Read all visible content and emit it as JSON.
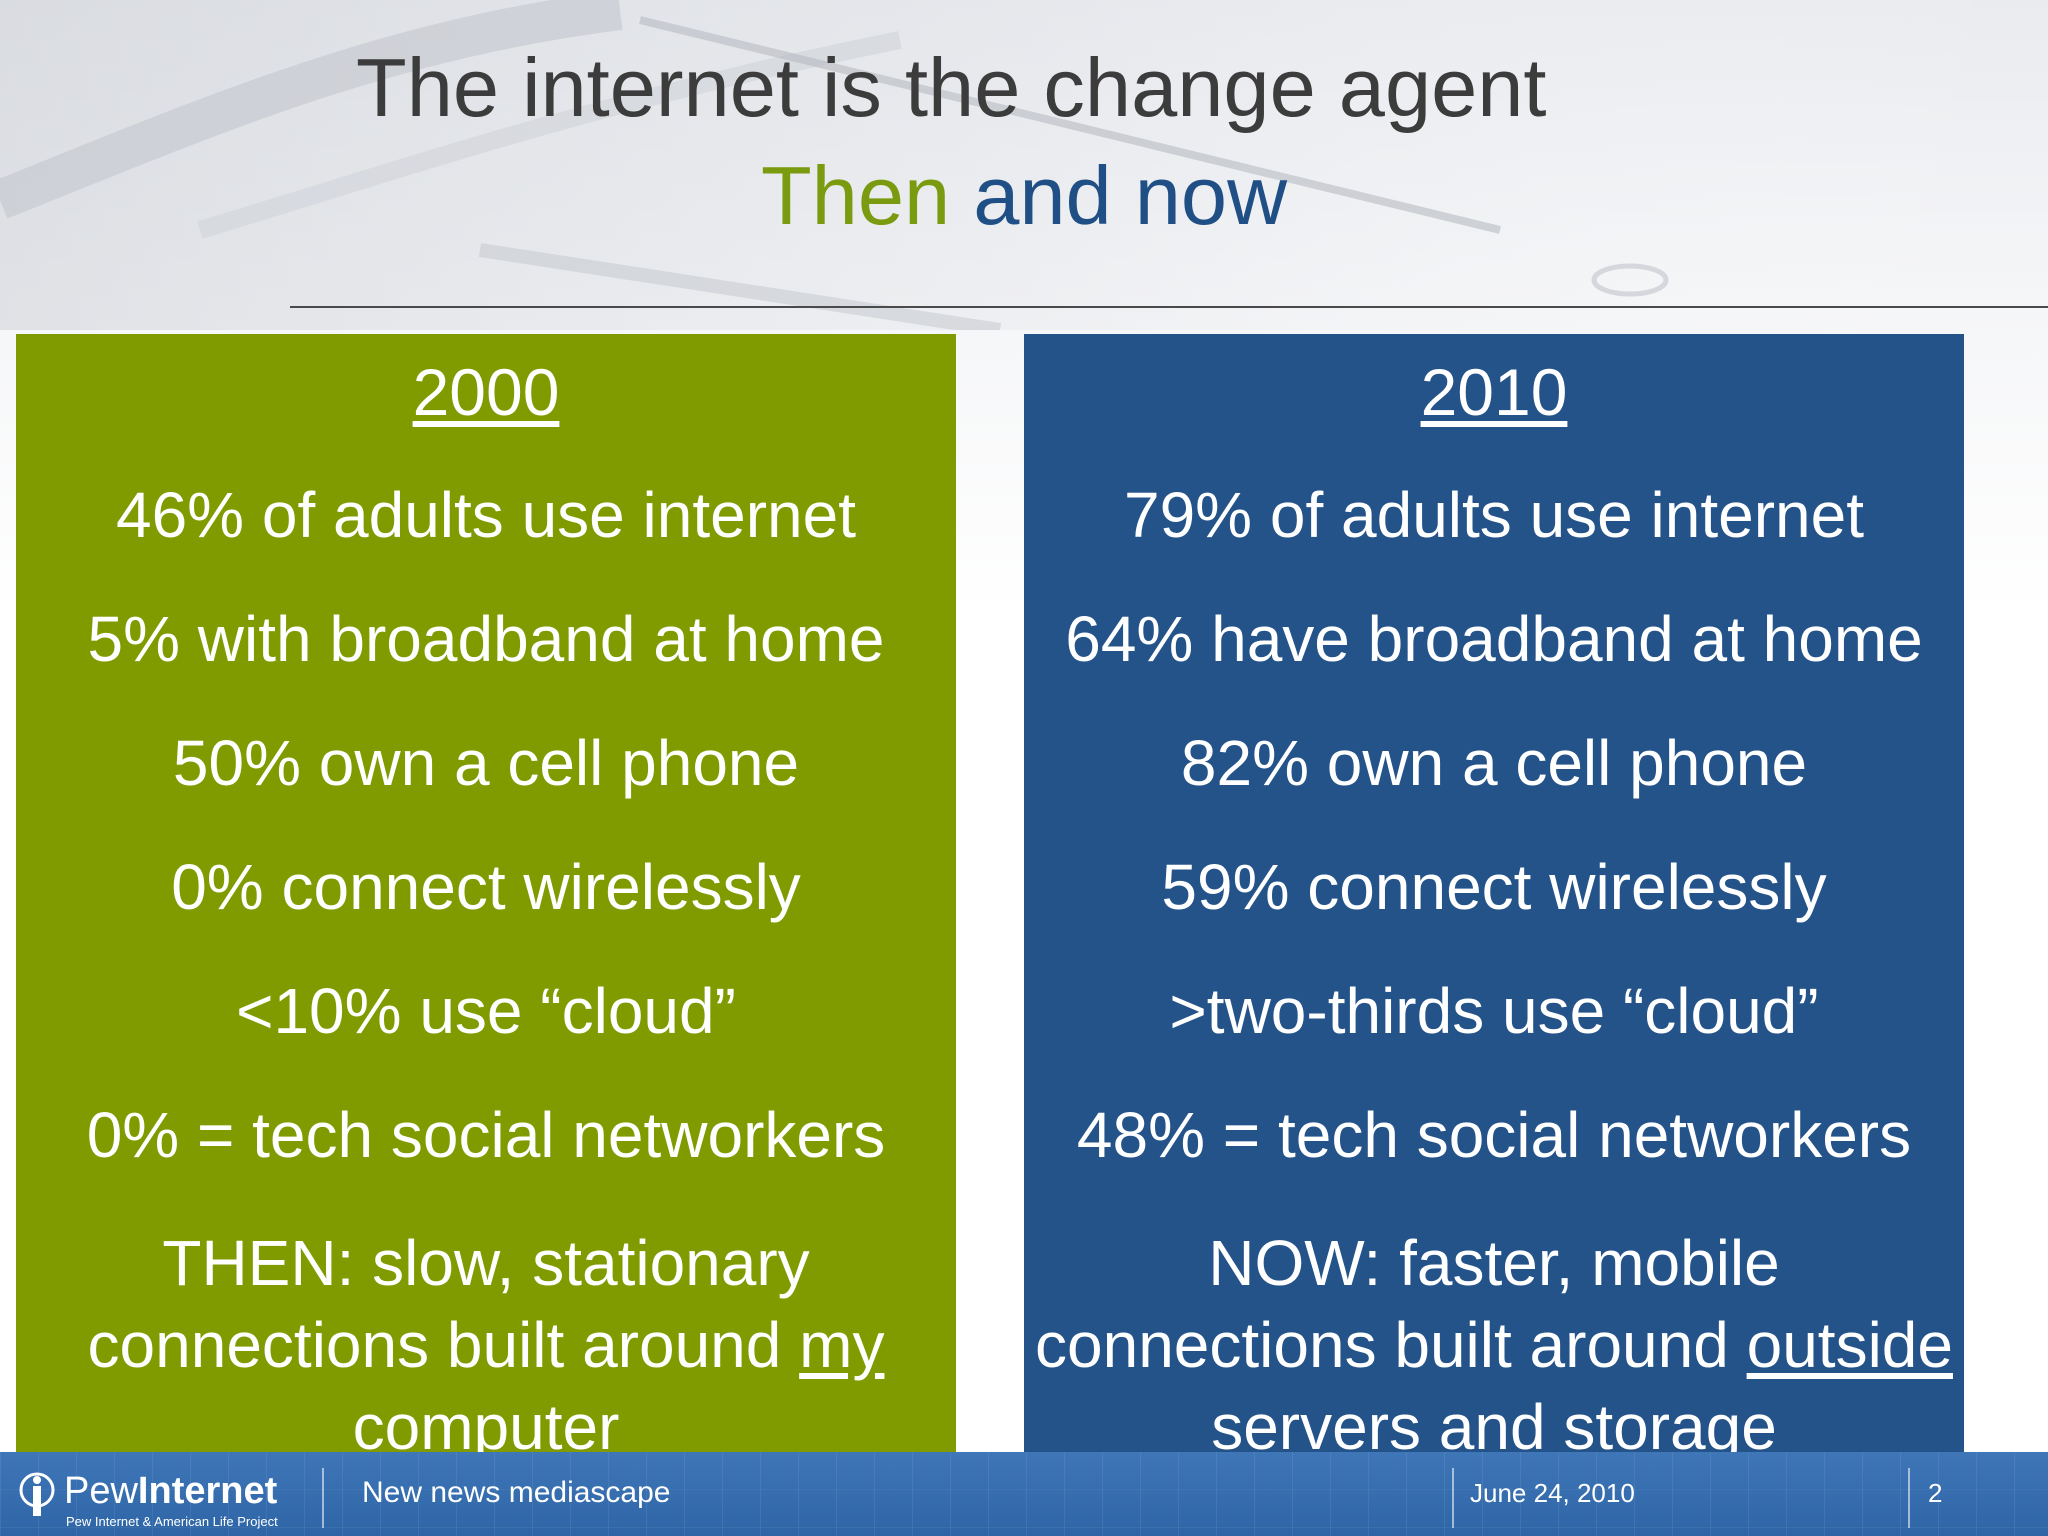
{
  "title": {
    "line1": "The internet is the change agent",
    "line2_then": "Then",
    "line2_now": "and now"
  },
  "panel_2000": {
    "year": "2000",
    "stats": [
      "46% of adults use internet",
      "5% with broadband at home",
      "50% own a cell phone",
      "0% connect wirelessly",
      "<10% use “cloud”",
      "0% = tech social networkers"
    ],
    "summary_prefix": "THEN: slow, stationary connections built around",
    "summary_underlined": "my computer"
  },
  "panel_2010": {
    "year": "2010",
    "stats": [
      "79% of adults use internet",
      "64% have broadband at home",
      "82% own a cell phone",
      "59% connect wirelessly",
      ">two-thirds use “cloud”",
      "48% = tech social networkers"
    ],
    "summary_prefix": "NOW: faster, mobile connections built around",
    "summary_underlined": "outside servers and storage"
  },
  "footer": {
    "logo_name_regular": "Pew",
    "logo_name_bold": "Internet",
    "logo_subtitle": "Pew Internet & American Life Project",
    "presentation_title": "New news mediascape",
    "date": "June 24, 2010",
    "page_number": "2"
  },
  "colors": {
    "then_green": "#809b00",
    "now_blue": "#24538a",
    "title_gray": "#3c3c3c",
    "footer_blue": "#3f76b8"
  }
}
